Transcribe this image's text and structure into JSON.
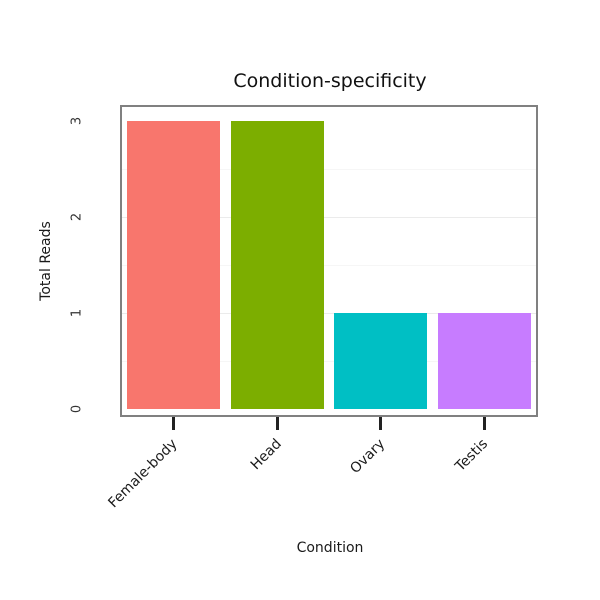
{
  "figure": {
    "title": "Condition-specificity",
    "x_axis_label": "Condition",
    "y_axis_label": "Total Reads"
  },
  "chart_data": {
    "type": "bar",
    "title": "Condition-specificity",
    "xlabel": "Condition",
    "ylabel": "Total Reads",
    "categories": [
      "Female-body",
      "Head",
      "Ovary",
      "Testis"
    ],
    "values": [
      3,
      3,
      1,
      1
    ],
    "bar_colors": [
      "#F8766D",
      "#7CAE00",
      "#00BFC4",
      "#C77CFF"
    ],
    "ylim": [
      0,
      3
    ],
    "yticks": [
      0,
      1,
      2,
      3
    ],
    "minor_gridlines": [
      0.5,
      1.5,
      2.5
    ],
    "major_gridlines": [
      1,
      2
    ],
    "grid": "faint horizontal gridlines on white panel",
    "legend": "none",
    "panel_border_color": "#808080",
    "major_grid_color": "#ebebeb",
    "minor_grid_color": "#f6f6f6",
    "tick_color": "#222222"
  }
}
